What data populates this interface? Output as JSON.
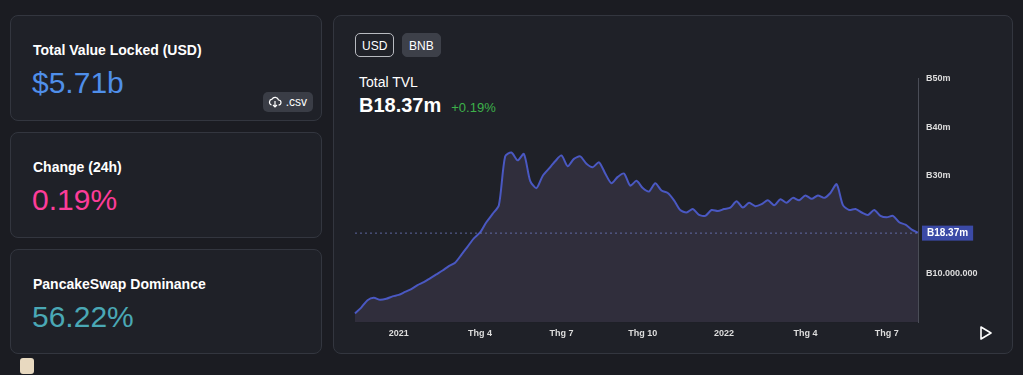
{
  "cards": [
    {
      "title": "Total Value Locked (USD)",
      "value": "$5.71b",
      "color": "#4f8fea",
      "button": ".csv"
    },
    {
      "title": "Change (24h)",
      "value": "0.19%",
      "color": "#fd3c99"
    },
    {
      "title": "PancakeSwap Dominance",
      "value": "56.22%",
      "color": "#4aa8b5"
    }
  ],
  "currency_toggle": {
    "options": [
      "USD",
      "BNB"
    ],
    "selected": "BNB"
  },
  "chart_data": {
    "type": "line",
    "title": "Total TVL",
    "subtitle": "B18.37m",
    "change": "+0.19%",
    "color": "#4a58c2",
    "grid": false,
    "categories": [
      null,
      null,
      null,
      null,
      null,
      null,
      null,
      "2021",
      null,
      null,
      null,
      null,
      null,
      null,
      null,
      null,
      null,
      null,
      null,
      null,
      "Thg 4",
      null,
      null,
      null,
      null,
      null,
      null,
      null,
      null,
      null,
      null,
      null,
      null,
      "Thg 7",
      null,
      null,
      null,
      null,
      null,
      null,
      null,
      null,
      null,
      null,
      null,
      null,
      "Thg 10",
      null,
      null,
      null,
      null,
      null,
      null,
      null,
      null,
      null,
      null,
      null,
      null,
      "2022",
      null,
      null,
      null,
      null,
      null,
      null,
      null,
      null,
      null,
      null,
      null,
      null,
      "Thg 4",
      null,
      null,
      null,
      null,
      null,
      null,
      null,
      null,
      null,
      null,
      null,
      null,
      "Thg 7",
      null,
      null,
      null,
      null,
      null
    ],
    "values": [
      1800000,
      3000000,
      4500000,
      5000000,
      4600000,
      4800000,
      5300000,
      5600000,
      6200000,
      6800000,
      7600000,
      8200000,
      9000000,
      9800000,
      10600000,
      11500000,
      12200000,
      13800000,
      15500000,
      17200000,
      18400000,
      20500000,
      22200000,
      24000000,
      34000000,
      34800000,
      33200000,
      34500000,
      29000000,
      27500000,
      30000000,
      31500000,
      33000000,
      34200000,
      32000000,
      33500000,
      34000000,
      32500000,
      31800000,
      32800000,
      30500000,
      28500000,
      29800000,
      30500000,
      28000000,
      29000000,
      27500000,
      26800000,
      28500000,
      27000000,
      26500000,
      25000000,
      23000000,
      22500000,
      23200000,
      22000000,
      21800000,
      23000000,
      22800000,
      23200000,
      23500000,
      24800000,
      23500000,
      24500000,
      23800000,
      24200000,
      25000000,
      24000000,
      25200000,
      24500000,
      25500000,
      25000000,
      26000000,
      25300000,
      26000000,
      25500000,
      26500000,
      28300000,
      24000000,
      23000000,
      23200000,
      22500000,
      22000000,
      23000000,
      21800000,
      21500000,
      21800000,
      20500000,
      20000000,
      19000000,
      18370000
    ],
    "ylim": [
      0,
      50000000
    ],
    "yticks": [
      {
        "value": 10000000,
        "label": "B10.000.000"
      },
      {
        "value": 30000000,
        "label": "B30m"
      },
      {
        "value": 40000000,
        "label": "B40m"
      },
      {
        "value": 50000000,
        "label": "B50m"
      }
    ],
    "annotations": [
      {
        "value": 18370000,
        "label": "B18.37m"
      }
    ]
  }
}
